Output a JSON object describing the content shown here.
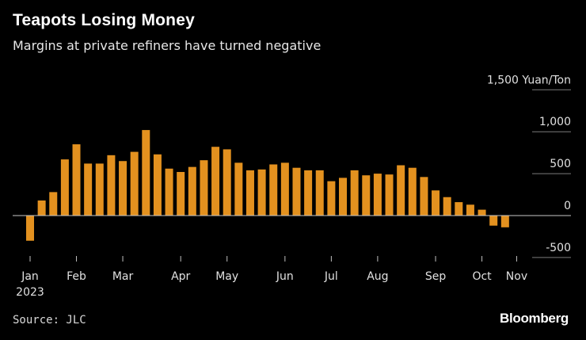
{
  "header": {
    "title": "Teapots Losing Money",
    "subtitle": "Margins at private refiners have turned negative"
  },
  "footer": {
    "source": "Source: JLC",
    "brand": "Bloomberg"
  },
  "colors": {
    "background": "#000000",
    "bar": "#E3911F",
    "gridline": "#7a7a7a",
    "zero_line": "#c8c8c8",
    "text": "#ffffff"
  },
  "chart_data": {
    "type": "bar",
    "title": "Teapots Losing Money",
    "subtitle": "Margins at private refiners have turned negative",
    "ylabel": "Yuan/Ton",
    "ylim": [
      -500,
      1500
    ],
    "yticks": [
      {
        "value": 1500,
        "label": "1,500 Yuan/Ton"
      },
      {
        "value": 1000,
        "label": "1,000"
      },
      {
        "value": 500,
        "label": "500"
      },
      {
        "value": 0,
        "label": "0"
      },
      {
        "value": -500,
        "label": "-500"
      }
    ],
    "values": [
      -300,
      180,
      280,
      670,
      850,
      620,
      620,
      720,
      650,
      760,
      1020,
      730,
      560,
      520,
      580,
      660,
      820,
      790,
      630,
      540,
      550,
      610,
      630,
      570,
      540,
      540,
      410,
      450,
      540,
      480,
      500,
      490,
      600,
      570,
      460,
      300,
      220,
      160,
      130,
      70,
      -120,
      -140
    ],
    "month_ticks": [
      {
        "index": 0,
        "label": "Jan"
      },
      {
        "index": 4,
        "label": "Feb"
      },
      {
        "index": 8,
        "label": "Mar"
      },
      {
        "index": 13,
        "label": "Apr"
      },
      {
        "index": 17,
        "label": "May"
      },
      {
        "index": 22,
        "label": "Jun"
      },
      {
        "index": 26,
        "label": "Jul"
      },
      {
        "index": 30,
        "label": "Aug"
      },
      {
        "index": 35,
        "label": "Sep"
      },
      {
        "index": 39,
        "label": "Oct"
      },
      {
        "index": 42,
        "label": "Nov"
      }
    ],
    "year_label": "2023",
    "grid": true
  }
}
